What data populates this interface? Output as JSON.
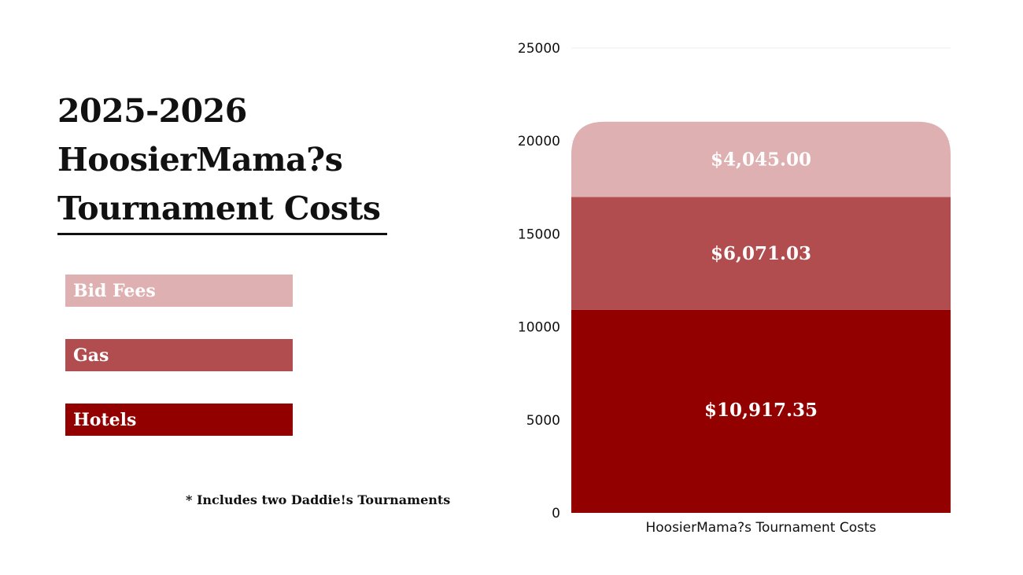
{
  "page": {
    "title_lines": [
      "2025-2026",
      "HoosierMama?s",
      "Tournament Costs"
    ],
    "footnote": "* Includes two Daddie!s Tournaments"
  },
  "legend": [
    {
      "label": "Bid Fees",
      "color": "#deb0b1"
    },
    {
      "label": "Gas",
      "color": "#b14d4e"
    },
    {
      "label": "Hotels",
      "color": "#920000"
    }
  ],
  "chart_data": {
    "type": "bar",
    "stacked": true,
    "title": "",
    "categories": [
      "HoosierMama?s Tournament Costs"
    ],
    "series": [
      {
        "name": "Hotels",
        "values": [
          10917.35
        ],
        "label": "$10,917.35",
        "color": "#920000"
      },
      {
        "name": "Gas",
        "values": [
          6071.03
        ],
        "label": "$6,071.03",
        "color": "#b14d4e"
      },
      {
        "name": "Bid Fees",
        "values": [
          4045.0
        ],
        "label": "$4,045.00",
        "color": "#deb0b1"
      }
    ],
    "xlabel": "",
    "ylabel": "",
    "ylim": [
      0,
      25000
    ],
    "yticks": [
      0,
      5000,
      10000,
      15000,
      20000,
      25000
    ],
    "grid": true,
    "legend_position": "left"
  }
}
